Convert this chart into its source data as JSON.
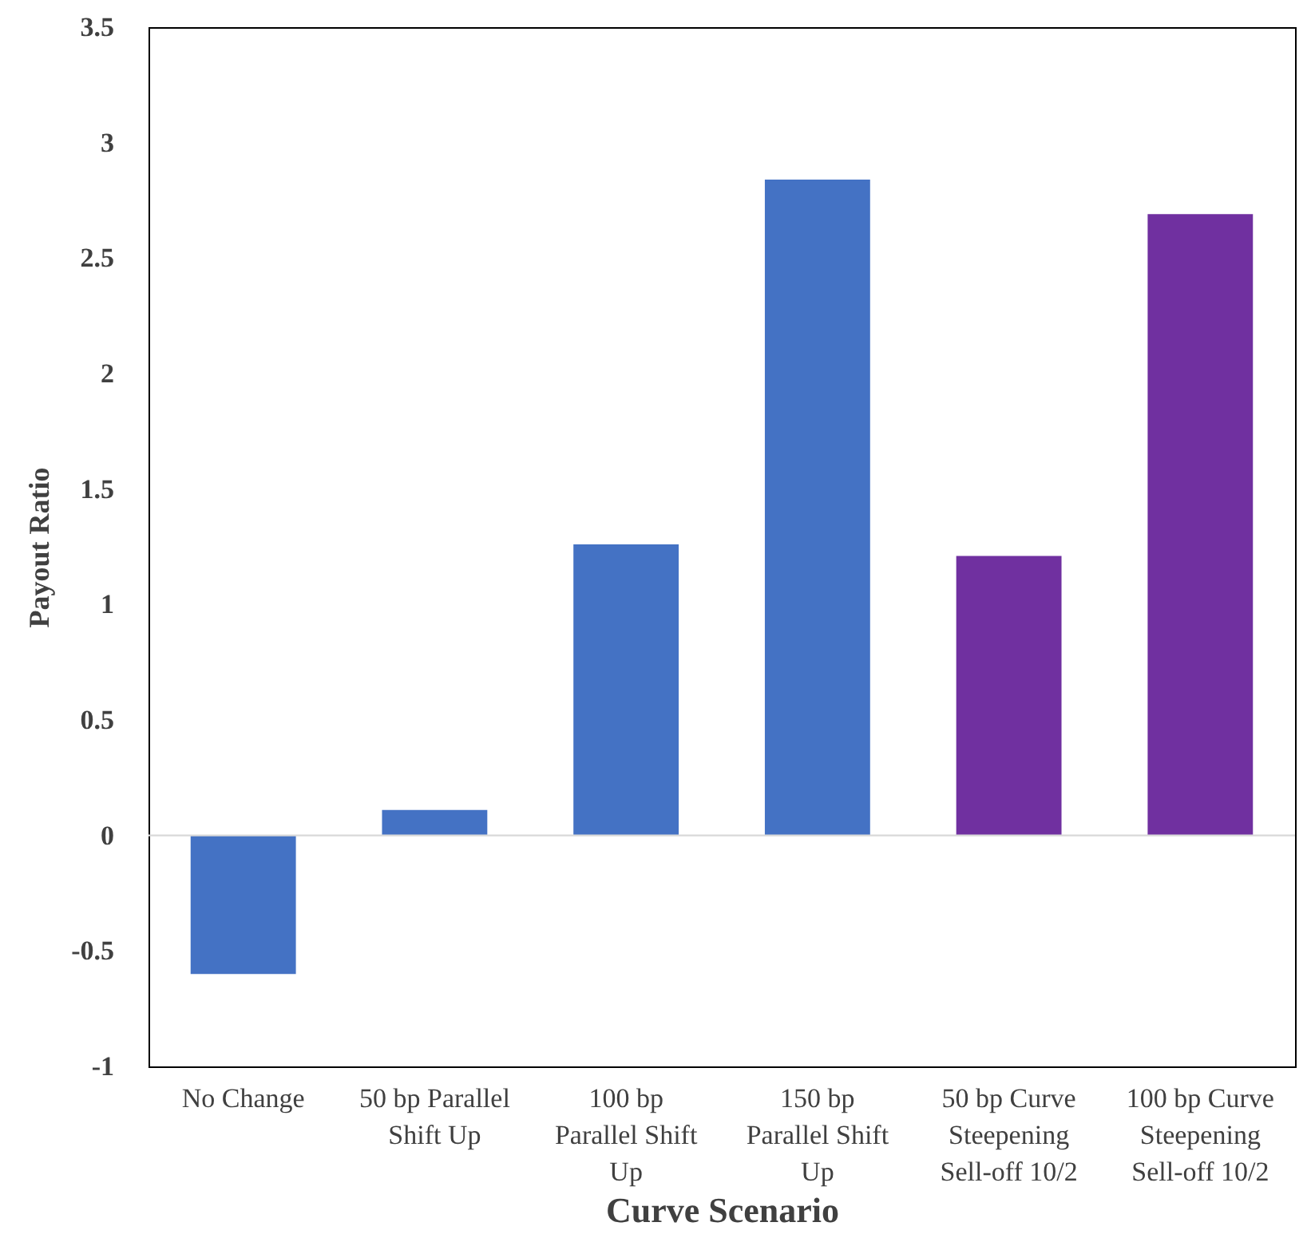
{
  "chart_data": {
    "type": "bar",
    "xlabel": "Curve Scenario",
    "ylabel": "Payout Ratio",
    "categories": [
      "No Change",
      "50 bp Parallel Shift Up",
      "100 bp Parallel Shift Up",
      "150 bp Parallel Shift Up",
      "50 bp Curve Steepening Sell-off 10/2",
      "100 bp Curve Steepening Sell-off  10/2"
    ],
    "values": [
      -0.6,
      0.11,
      1.26,
      2.84,
      1.21,
      2.69
    ],
    "colors": [
      "#4472c4",
      "#4472c4",
      "#4472c4",
      "#4472c4",
      "#7030a0",
      "#7030a0"
    ],
    "ylim": [
      -1,
      3.5
    ],
    "yticks": [
      -1,
      -0.5,
      0,
      0.5,
      1,
      1.5,
      2,
      2.5,
      3,
      3.5
    ],
    "ref_lines": [
      {
        "axis": "y",
        "value": 0,
        "color": "#d9d9d9"
      }
    ],
    "grid": false
  }
}
